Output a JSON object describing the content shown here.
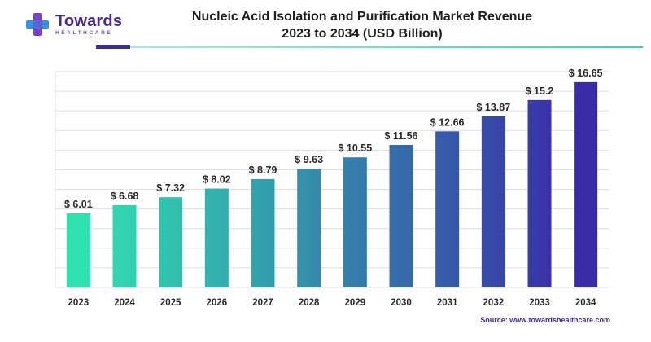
{
  "brand": {
    "name": "Towards",
    "sub": "HEALTHCARE"
  },
  "title_line1": "Nucleic Acid Isolation and Purification Market Revenue",
  "title_line2": "2023 to 2034 (USD Billion)",
  "source": "Source: www.towardshealthcare.com",
  "colors": {
    "bar_start": "#2fe3b0",
    "bar_end": "#3a2ca8",
    "grid": "#dedede",
    "brand": "#4a2a8c",
    "logo_purple": "#7b3fd0",
    "logo_blue": "#3a8fe0"
  },
  "chart_data": {
    "type": "bar",
    "categories": [
      "2023",
      "2024",
      "2025",
      "2026",
      "2027",
      "2028",
      "2029",
      "2030",
      "2031",
      "2032",
      "2033",
      "2034"
    ],
    "values": [
      6.01,
      6.68,
      7.32,
      8.02,
      8.79,
      9.63,
      10.55,
      11.56,
      12.66,
      13.87,
      15.2,
      16.65
    ],
    "labels": [
      "$ 6.01",
      "$ 6.68",
      "$ 7.32",
      "$ 8.02",
      "$ 8.79",
      "$ 9.63",
      "$ 10.55",
      "$ 11.56",
      "$ 12.66",
      "$ 13.87",
      "$ 15.2",
      "$ 16.65"
    ],
    "title": "Nucleic Acid Isolation and Purification Market Revenue 2023 to 2034 (USD Billion)",
    "xlabel": "",
    "ylabel": "",
    "ylim": [
      0,
      17.5
    ],
    "grid": true,
    "legend": "none"
  }
}
